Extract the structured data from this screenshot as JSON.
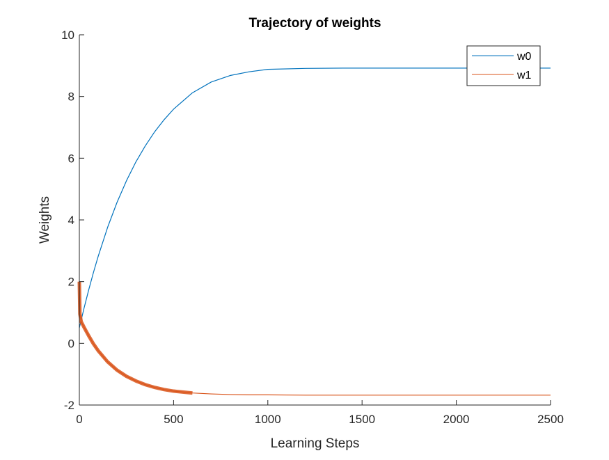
{
  "chart_data": {
    "type": "line",
    "title": "Trajectory of weights",
    "xlabel": "Learning Steps",
    "ylabel": "Weights",
    "xlim": [
      0,
      2500
    ],
    "ylim": [
      -2,
      10
    ],
    "xticks": [
      0,
      500,
      1000,
      1500,
      2000,
      2500
    ],
    "yticks": [
      -2,
      0,
      2,
      4,
      6,
      8,
      10
    ],
    "grid": false,
    "legend_position": "top-right",
    "series": [
      {
        "name": "w0",
        "color": "#0072BD",
        "x": [
          0,
          10,
          25,
          50,
          75,
          100,
          150,
          200,
          250,
          300,
          350,
          400,
          450,
          500,
          600,
          700,
          800,
          900,
          1000,
          1200,
          1400,
          1600,
          1800,
          2000,
          2200,
          2500
        ],
        "y": [
          0.5,
          0.76,
          1.14,
          1.74,
          2.3,
          2.82,
          3.76,
          4.57,
          5.27,
          5.88,
          6.4,
          6.86,
          7.25,
          7.59,
          8.12,
          8.47,
          8.68,
          8.8,
          8.88,
          8.91,
          8.92,
          8.92,
          8.92,
          8.92,
          8.92,
          8.92
        ]
      },
      {
        "name": "w1",
        "color": "#D95319",
        "x": [
          0,
          3,
          10,
          25,
          50,
          75,
          100,
          150,
          200,
          250,
          300,
          350,
          400,
          450,
          500,
          600,
          700,
          800,
          900,
          1000,
          1200,
          1400,
          1600,
          1800,
          2000,
          2500
        ],
        "y": [
          2.0,
          0.95,
          0.7,
          0.52,
          0.24,
          -0.02,
          -0.24,
          -0.6,
          -0.87,
          -1.07,
          -1.22,
          -1.34,
          -1.43,
          -1.5,
          -1.55,
          -1.61,
          -1.64,
          -1.66,
          -1.67,
          -1.67,
          -1.68,
          -1.68,
          -1.68,
          -1.68,
          -1.68,
          -1.68
        ]
      }
    ]
  }
}
